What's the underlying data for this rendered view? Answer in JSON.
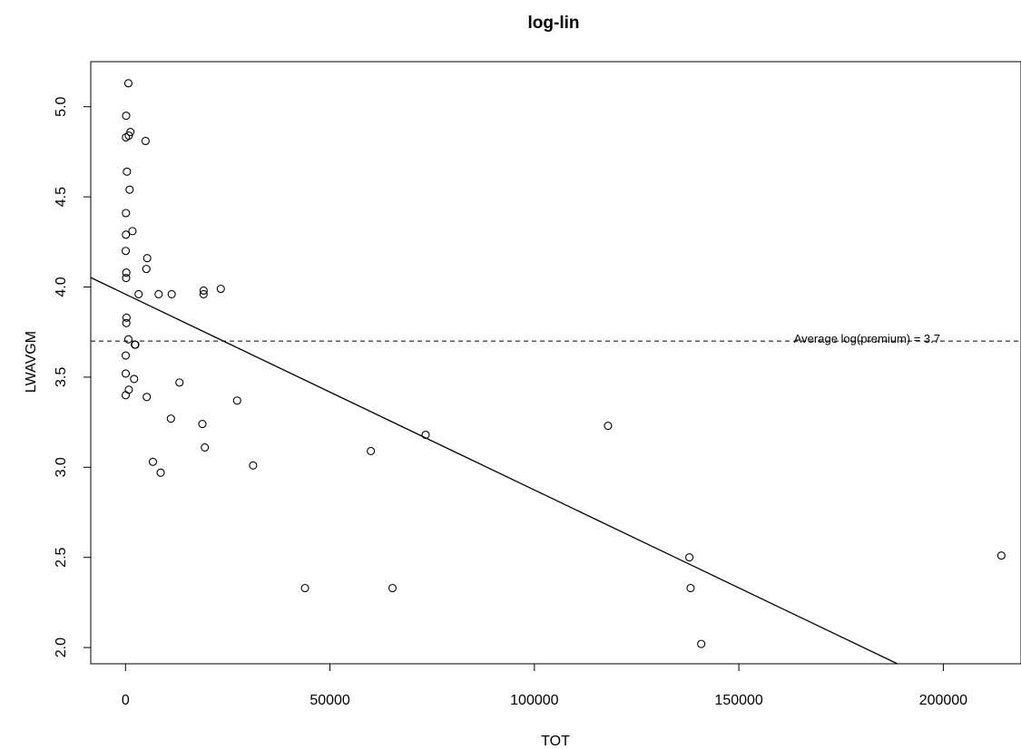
{
  "chart_data": {
    "type": "scatter",
    "title": "log-lin",
    "xlabel": "TOT",
    "ylabel": "LWAVGM",
    "xlim": [
      -8500,
      219000
    ],
    "ylim": [
      1.91,
      5.25
    ],
    "x_ticks": [
      0,
      50000,
      100000,
      150000,
      200000
    ],
    "x_tick_labels": [
      "0",
      "50000",
      "100000",
      "150000",
      "200000"
    ],
    "y_ticks": [
      2.0,
      2.5,
      3.0,
      3.5,
      4.0,
      4.5,
      5.0
    ],
    "y_tick_labels": [
      "2.0",
      "2.5",
      "3.0",
      "3.5",
      "4.0",
      "4.5",
      "5.0"
    ],
    "grid": false,
    "legend": "none",
    "points": [
      [
        700,
        5.13
      ],
      [
        150,
        4.95
      ],
      [
        1200,
        4.86
      ],
      [
        800,
        4.84
      ],
      [
        100,
        4.83
      ],
      [
        4900,
        4.81
      ],
      [
        350,
        4.64
      ],
      [
        1000,
        4.54
      ],
      [
        100,
        4.41
      ],
      [
        1700,
        4.31
      ],
      [
        100,
        4.29
      ],
      [
        50,
        4.2
      ],
      [
        5300,
        4.16
      ],
      [
        5100,
        4.1
      ],
      [
        200,
        4.08
      ],
      [
        150,
        4.05
      ],
      [
        3200,
        3.96
      ],
      [
        8100,
        3.96
      ],
      [
        11300,
        3.96
      ],
      [
        19100,
        3.98
      ],
      [
        19100,
        3.96
      ],
      [
        23300,
        3.99
      ],
      [
        250,
        3.83
      ],
      [
        200,
        3.8
      ],
      [
        700,
        3.71
      ],
      [
        2300,
        3.68
      ],
      [
        2400,
        3.68
      ],
      [
        50,
        3.62
      ],
      [
        50,
        3.52
      ],
      [
        2100,
        3.49
      ],
      [
        13200,
        3.47
      ],
      [
        800,
        3.43
      ],
      [
        50,
        3.4
      ],
      [
        5200,
        3.39
      ],
      [
        27300,
        3.37
      ],
      [
        11100,
        3.27
      ],
      [
        18800,
        3.24
      ],
      [
        19400,
        3.11
      ],
      [
        6700,
        3.03
      ],
      [
        8600,
        2.97
      ],
      [
        31200,
        3.01
      ],
      [
        60000,
        3.09
      ],
      [
        73400,
        3.18
      ],
      [
        118000,
        3.23
      ],
      [
        43900,
        2.33
      ],
      [
        65300,
        2.33
      ],
      [
        137900,
        2.5
      ],
      [
        138200,
        2.33
      ],
      [
        140800,
        2.02
      ],
      [
        214200,
        2.51
      ]
    ],
    "fit_line": {
      "type": "solid",
      "intercept": 3.96,
      "slope": -1.086e-05
    },
    "mean_line": {
      "type": "dashed",
      "y": 3.7,
      "label": "Average log(premium) =  3.7"
    }
  }
}
